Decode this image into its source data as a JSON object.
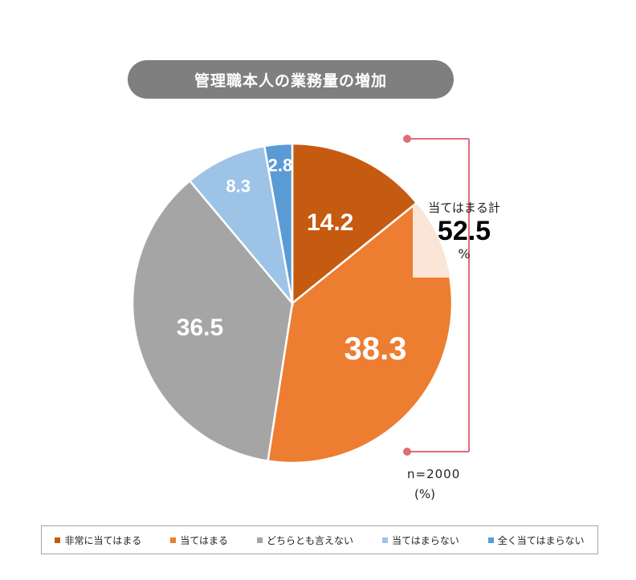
{
  "title": "管理職本人の業務量の増加",
  "total": {
    "caption": "当てはまる計",
    "value": "52.5",
    "unit": "%"
  },
  "n_label": "n=2000",
  "unit_label": "(%)",
  "colors": {
    "very_applicable": "#c55a11",
    "applicable": "#ed7d31",
    "neither": "#a5a5a5",
    "not_applicable": "#9dc3e6",
    "not_at_all": "#5b9bd5",
    "highlight": "#fbe5d6",
    "bracket": "#e06c7a"
  },
  "legend": [
    {
      "label": "非常に当てはまる",
      "color": "#c55a11"
    },
    {
      "label": "当てはまる",
      "color": "#ed7d31"
    },
    {
      "label": "どちらとも言えない",
      "color": "#a5a5a5"
    },
    {
      "label": "当てはまらない",
      "color": "#9dc3e6"
    },
    {
      "label": "全く当てはまらない",
      "color": "#5b9bd5"
    }
  ],
  "chart_data": {
    "type": "pie",
    "title": "管理職本人の業務量の増加",
    "categories": [
      "非常に当てはまる",
      "当てはまる",
      "どちらとも言えない",
      "当てはまらない",
      "全く当てはまらない"
    ],
    "values": [
      14.2,
      38.3,
      36.5,
      8.3,
      2.8
    ],
    "labels": [
      "14.2",
      "38.3",
      "36.5",
      "8.3",
      "2.8"
    ],
    "annotation": {
      "text": "当てはまる計",
      "value": 52.5,
      "unit": "%"
    },
    "sample_size": "n=2000",
    "unit": "(%)",
    "legend_position": "bottom",
    "start_angle": "12 o'clock, clockwise"
  }
}
